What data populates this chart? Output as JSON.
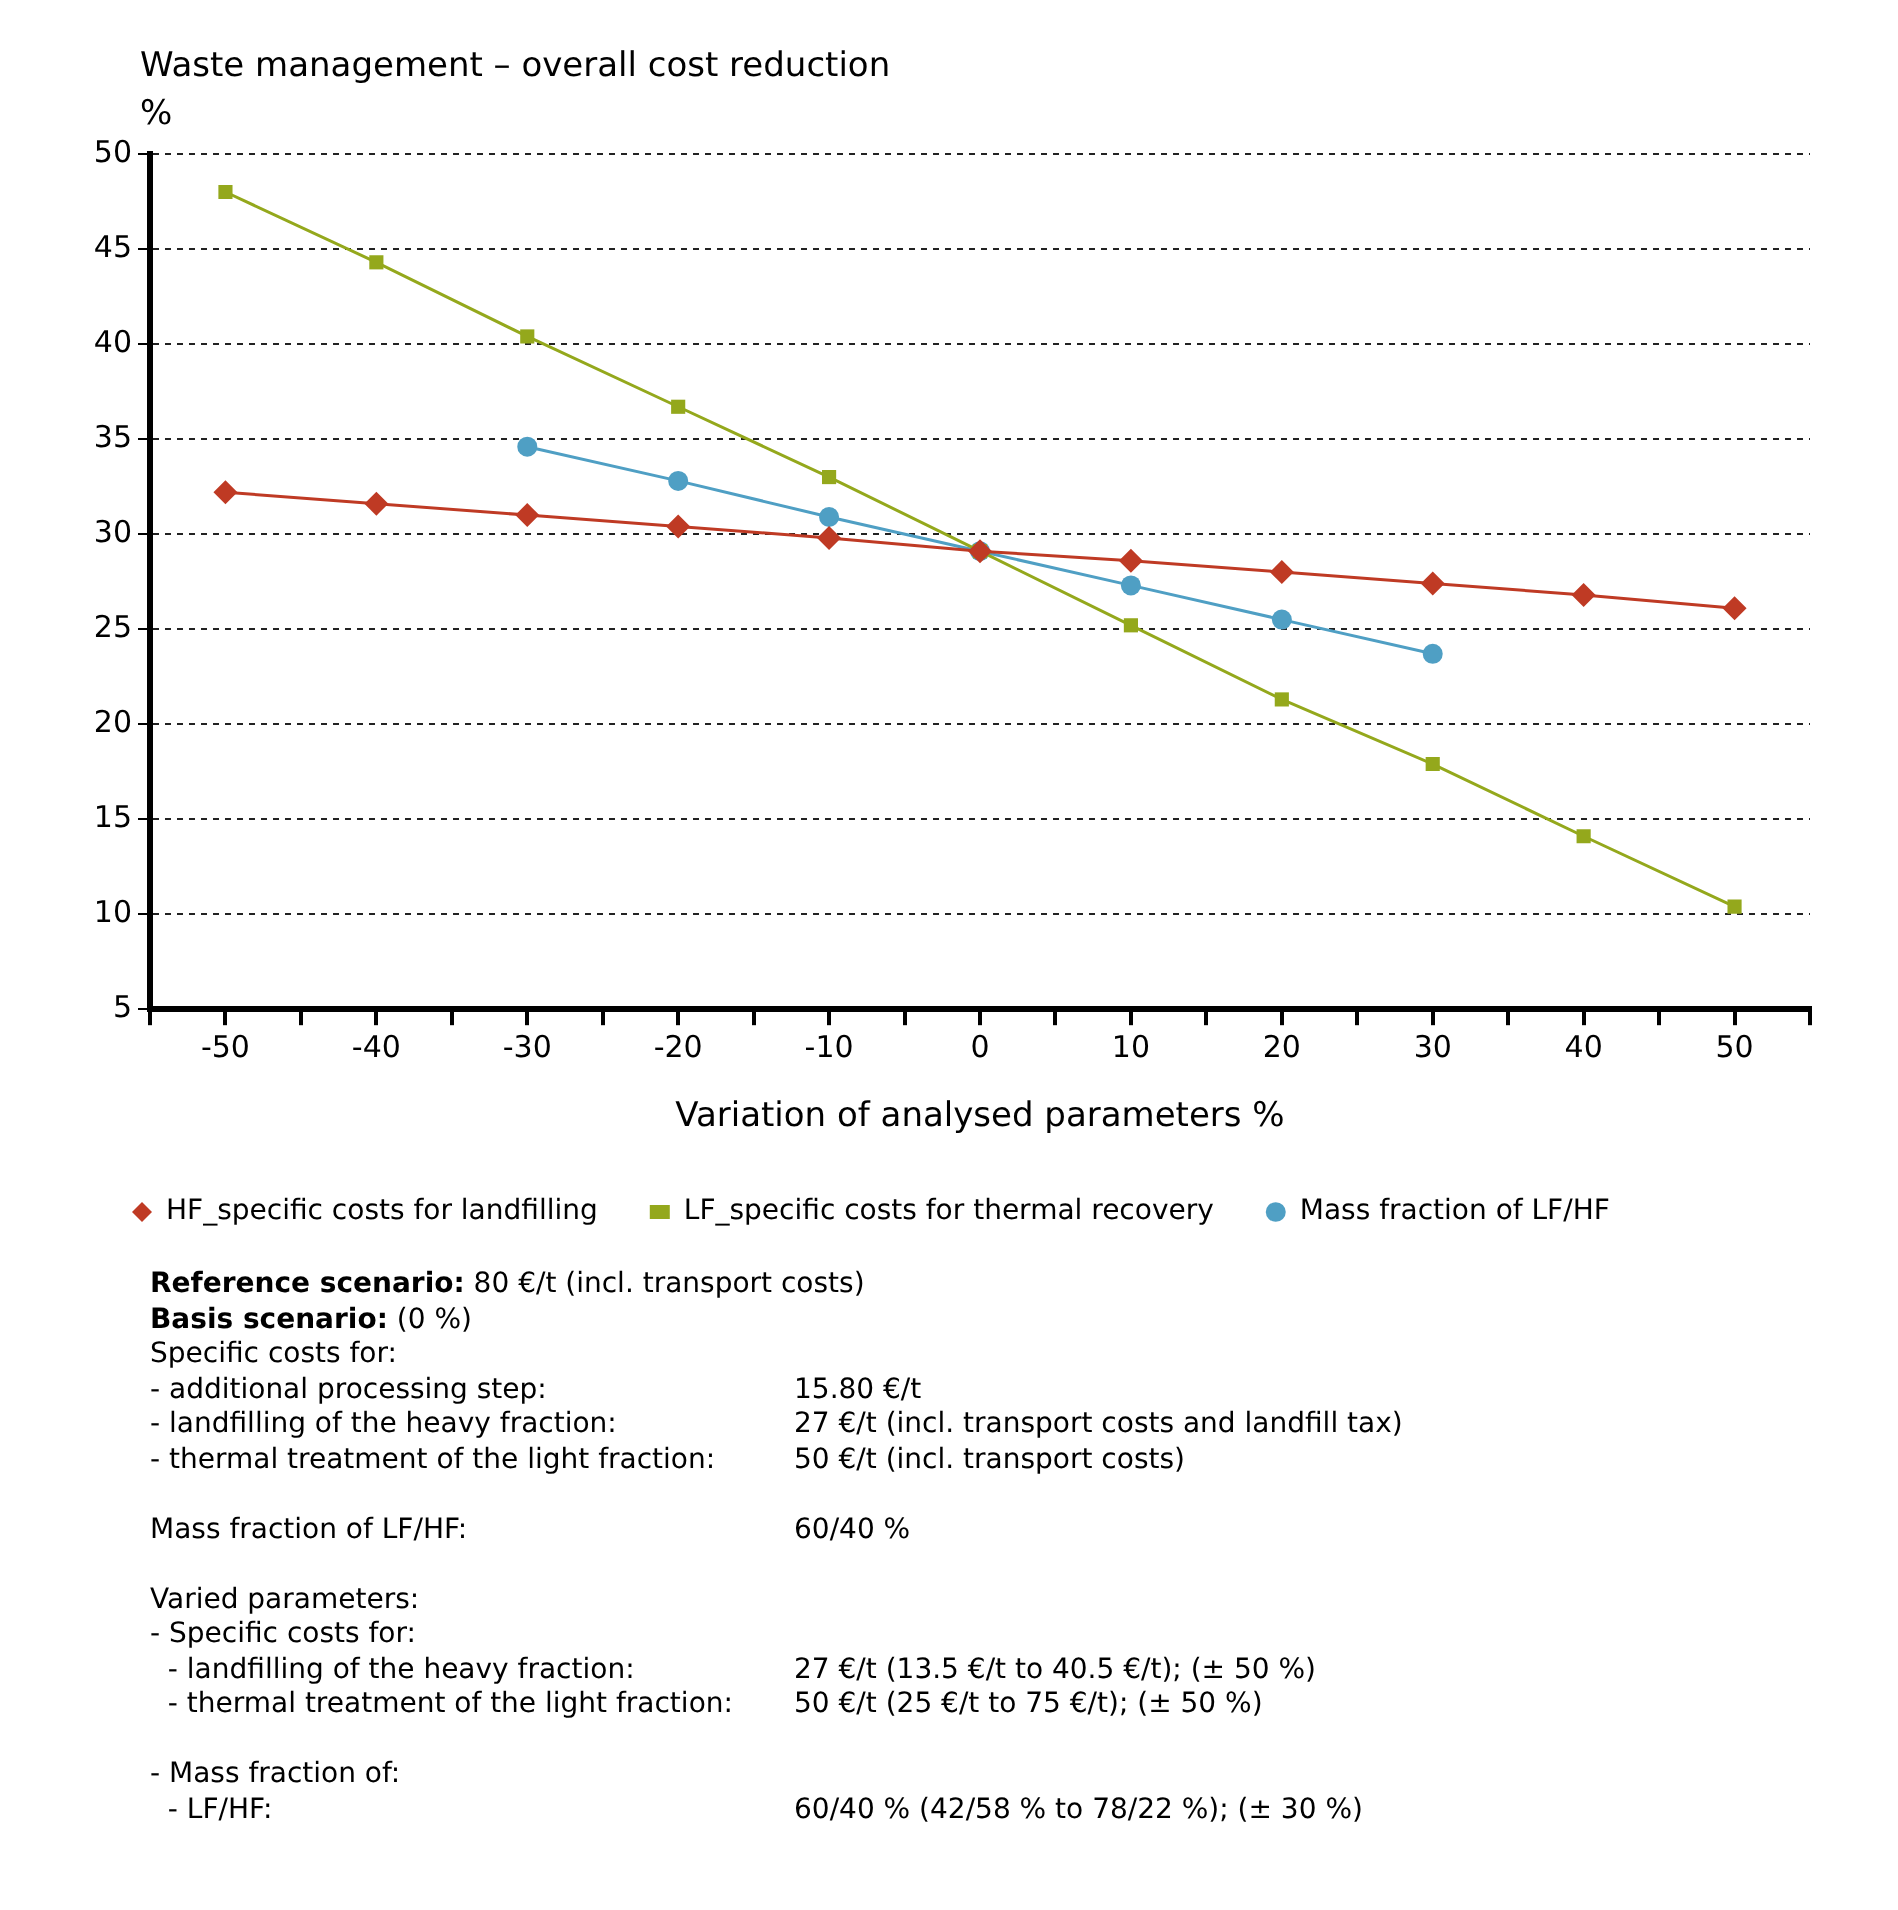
{
  "chart_data": {
    "type": "line",
    "title": "Waste management – overall cost reduction",
    "ylabel": "%",
    "xlabel": "Variation of analysed parameters %",
    "xlim": [
      -55,
      55
    ],
    "xticks": [
      {
        "value": -55,
        "label": null
      },
      -50,
      {
        "value": -45,
        "label": null
      },
      -40,
      {
        "value": -35,
        "label": null
      },
      -30,
      {
        "value": -25,
        "label": null
      },
      -20,
      {
        "value": -15,
        "label": null
      },
      -10,
      {
        "value": -5,
        "label": null
      },
      0,
      {
        "value": 5,
        "label": null
      },
      10,
      {
        "value": 15,
        "label": null
      },
      20,
      {
        "value": 25,
        "label": null
      },
      30,
      {
        "value": 35,
        "label": null
      },
      40,
      {
        "value": 45,
        "label": null
      },
      50,
      {
        "value": 55,
        "label": null
      }
    ],
    "ylim": [
      5,
      50
    ],
    "yticks": [
      5,
      10,
      15,
      20,
      25,
      30,
      35,
      40,
      45,
      50
    ],
    "grid": "y",
    "legend": "bottom",
    "line_style": "solid",
    "series": [
      {
        "name": "HF_specific costs for landfilling",
        "color": "#bf3a24",
        "marker": "diamond",
        "x": [
          -50,
          -40,
          -30,
          -20,
          -10,
          0,
          10,
          20,
          30,
          40,
          50
        ],
        "values": [
          32.2,
          31.6,
          31.0,
          30.4,
          29.8,
          29.1,
          28.6,
          28.0,
          27.4,
          26.8,
          26.1
        ]
      },
      {
        "name": "LF_specific costs for thermal recovery",
        "color": "#94a81c",
        "marker": "square",
        "x": [
          -50,
          -40,
          -30,
          -20,
          -10,
          0,
          10,
          20,
          30,
          40,
          50
        ],
        "values": [
          48.0,
          44.3,
          40.4,
          36.7,
          33.0,
          29.1,
          25.2,
          21.3,
          17.9,
          14.1,
          10.4
        ]
      },
      {
        "name": "Mass fraction of LF/HF",
        "color": "#4f9fc4",
        "marker": "circle",
        "x": [
          -30,
          -20,
          -10,
          0,
          10,
          20,
          30
        ],
        "values": [
          34.6,
          32.8,
          30.9,
          29.1,
          27.3,
          25.5,
          23.7
        ]
      }
    ],
    "annotations": [
      "Reference scenario: 80 €/t (incl. transport costs)\nBasis scenario: (0 %)\nSpecific costs for:\n- additional processing step:\t15.80 €/t\n- landfilling of the heavy fraction:\t27 €/t (incl. transport costs and landfill tax)\n- thermal treatment of the light fraction:\t50 €/t (incl. transport costs)",
      "Mass fraction of LF/HF:\t60/40 %",
      "Varied parameters:\n- Specific costs for:\n  - landfilling of the heavy fraction:\t27 €/t (13.5 €/t to 40.5 €/t); (± 50 %)\n  - thermal treatment of the light fraction:\t50 €/t (25 €/t to 75 €/t); (± 50 %)",
      "- Mass fraction of:\n  - LF/HF:\t60/40 % (42/58 % to 78/22 %); (± 30 %)"
    ]
  }
}
